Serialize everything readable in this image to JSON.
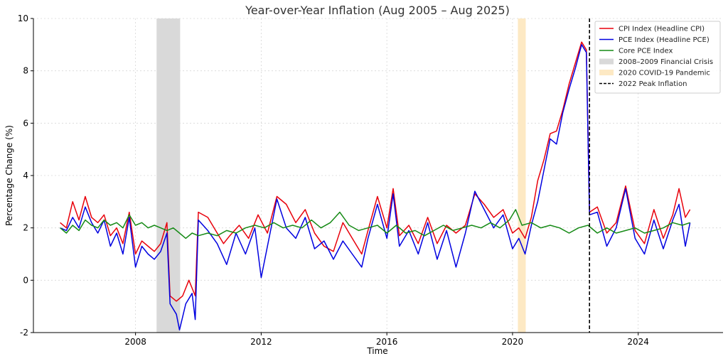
{
  "chart_data": {
    "type": "line",
    "title": "Year-over-Year Inflation (Aug 2005 – Aug 2025)",
    "xlabel": "Time",
    "ylabel": "Percentage Change (%)",
    "xlim": [
      2004.75,
      2026.7
    ],
    "ylim": [
      -2,
      10
    ],
    "xticks": [
      2008,
      2012,
      2016,
      2020,
      2024
    ],
    "yticks": [
      -2,
      0,
      2,
      4,
      6,
      8,
      10
    ],
    "grid": true,
    "legend_position": "top-right",
    "bands": [
      {
        "name": "2008–2009 Financial Crisis",
        "start": 2008.67,
        "end": 2009.42,
        "color": "#d9d9d9"
      },
      {
        "name": "2020 COVID-19 Pandemic",
        "start": 2020.17,
        "end": 2020.42,
        "color": "#fde9c4"
      }
    ],
    "vlines": [
      {
        "name": "2022 Peak Inflation",
        "x": 2022.45,
        "color": "#000000",
        "style": "dashed"
      }
    ],
    "series": [
      {
        "name": "CPI Index (Headline CPI)",
        "color": "#e8000b",
        "points": [
          [
            2005.6,
            2.2
          ],
          [
            2005.8,
            2.0
          ],
          [
            2006.0,
            3.0
          ],
          [
            2006.2,
            2.3
          ],
          [
            2006.4,
            3.2
          ],
          [
            2006.6,
            2.4
          ],
          [
            2006.8,
            2.2
          ],
          [
            2007.0,
            2.5
          ],
          [
            2007.2,
            1.7
          ],
          [
            2007.4,
            2.0
          ],
          [
            2007.6,
            1.4
          ],
          [
            2007.8,
            2.6
          ],
          [
            2008.0,
            1.0
          ],
          [
            2008.2,
            1.5
          ],
          [
            2008.4,
            1.3
          ],
          [
            2008.6,
            1.1
          ],
          [
            2008.8,
            1.4
          ],
          [
            2009.0,
            2.2
          ],
          [
            2009.1,
            -0.6
          ],
          [
            2009.3,
            -0.8
          ],
          [
            2009.5,
            -0.6
          ],
          [
            2009.7,
            0.0
          ],
          [
            2009.9,
            -0.6
          ],
          [
            2010.0,
            2.6
          ],
          [
            2010.3,
            2.4
          ],
          [
            2010.6,
            1.8
          ],
          [
            2010.8,
            1.4
          ],
          [
            2011.0,
            1.7
          ],
          [
            2011.3,
            2.1
          ],
          [
            2011.6,
            1.6
          ],
          [
            2011.9,
            2.5
          ],
          [
            2012.2,
            1.8
          ],
          [
            2012.5,
            3.2
          ],
          [
            2012.8,
            2.9
          ],
          [
            2013.1,
            2.2
          ],
          [
            2013.4,
            2.7
          ],
          [
            2013.7,
            1.8
          ],
          [
            2014.0,
            1.3
          ],
          [
            2014.3,
            1.1
          ],
          [
            2014.6,
            2.2
          ],
          [
            2014.9,
            1.6
          ],
          [
            2015.2,
            1.0
          ],
          [
            2015.4,
            1.9
          ],
          [
            2015.7,
            3.2
          ],
          [
            2016.0,
            2.0
          ],
          [
            2016.2,
            3.5
          ],
          [
            2016.4,
            1.7
          ],
          [
            2016.7,
            2.1
          ],
          [
            2017.0,
            1.4
          ],
          [
            2017.3,
            2.4
          ],
          [
            2017.6,
            1.4
          ],
          [
            2017.9,
            2.1
          ],
          [
            2018.2,
            1.8
          ],
          [
            2018.5,
            2.1
          ],
          [
            2018.8,
            3.3
          ],
          [
            2019.1,
            2.9
          ],
          [
            2019.4,
            2.4
          ],
          [
            2019.7,
            2.7
          ],
          [
            2020.0,
            1.8
          ],
          [
            2020.2,
            2.0
          ],
          [
            2020.4,
            1.6
          ],
          [
            2020.6,
            2.4
          ],
          [
            2020.8,
            3.8
          ],
          [
            2021.0,
            4.6
          ],
          [
            2021.2,
            5.6
          ],
          [
            2021.4,
            5.7
          ],
          [
            2021.6,
            6.5
          ],
          [
            2021.8,
            7.5
          ],
          [
            2022.0,
            8.3
          ],
          [
            2022.2,
            9.1
          ],
          [
            2022.35,
            8.8
          ],
          [
            2022.45,
            2.6
          ],
          [
            2022.7,
            2.8
          ],
          [
            2023.0,
            1.8
          ],
          [
            2023.3,
            2.2
          ],
          [
            2023.6,
            3.6
          ],
          [
            2023.9,
            1.9
          ],
          [
            2024.2,
            1.4
          ],
          [
            2024.5,
            2.7
          ],
          [
            2024.8,
            1.6
          ],
          [
            2025.1,
            2.5
          ],
          [
            2025.3,
            3.5
          ],
          [
            2025.5,
            2.4
          ],
          [
            2025.65,
            2.7
          ]
        ]
      },
      {
        "name": "PCE Index (Headline PCE)",
        "color": "#0000e0",
        "points": [
          [
            2005.6,
            2.0
          ],
          [
            2005.8,
            1.9
          ],
          [
            2006.0,
            2.4
          ],
          [
            2006.2,
            2.0
          ],
          [
            2006.4,
            2.8
          ],
          [
            2006.6,
            2.2
          ],
          [
            2006.8,
            1.8
          ],
          [
            2007.0,
            2.3
          ],
          [
            2007.2,
            1.3
          ],
          [
            2007.4,
            1.8
          ],
          [
            2007.6,
            1.0
          ],
          [
            2007.8,
            2.4
          ],
          [
            2008.0,
            0.5
          ],
          [
            2008.2,
            1.3
          ],
          [
            2008.4,
            1.0
          ],
          [
            2008.6,
            0.8
          ],
          [
            2008.8,
            1.1
          ],
          [
            2009.0,
            1.8
          ],
          [
            2009.1,
            -0.9
          ],
          [
            2009.3,
            -1.3
          ],
          [
            2009.4,
            -1.9
          ],
          [
            2009.6,
            -0.9
          ],
          [
            2009.8,
            -0.5
          ],
          [
            2009.9,
            -1.5
          ],
          [
            2010.0,
            2.3
          ],
          [
            2010.3,
            1.9
          ],
          [
            2010.6,
            1.4
          ],
          [
            2010.9,
            0.6
          ],
          [
            2011.2,
            1.8
          ],
          [
            2011.5,
            1.0
          ],
          [
            2011.8,
            2.0
          ],
          [
            2012.0,
            0.1
          ],
          [
            2012.3,
            1.9
          ],
          [
            2012.5,
            3.1
          ],
          [
            2012.8,
            2.0
          ],
          [
            2013.1,
            1.6
          ],
          [
            2013.4,
            2.4
          ],
          [
            2013.7,
            1.2
          ],
          [
            2014.0,
            1.5
          ],
          [
            2014.3,
            0.8
          ],
          [
            2014.6,
            1.5
          ],
          [
            2014.9,
            1.0
          ],
          [
            2015.2,
            0.5
          ],
          [
            2015.4,
            1.6
          ],
          [
            2015.7,
            2.9
          ],
          [
            2016.0,
            1.6
          ],
          [
            2016.2,
            3.3
          ],
          [
            2016.4,
            1.3
          ],
          [
            2016.7,
            1.9
          ],
          [
            2017.0,
            1.0
          ],
          [
            2017.3,
            2.2
          ],
          [
            2017.6,
            0.8
          ],
          [
            2017.9,
            1.9
          ],
          [
            2018.2,
            0.5
          ],
          [
            2018.5,
            1.8
          ],
          [
            2018.8,
            3.4
          ],
          [
            2019.1,
            2.7
          ],
          [
            2019.4,
            2.0
          ],
          [
            2019.7,
            2.5
          ],
          [
            2020.0,
            1.2
          ],
          [
            2020.2,
            1.6
          ],
          [
            2020.4,
            1.0
          ],
          [
            2020.6,
            2.1
          ],
          [
            2020.8,
            3.0
          ],
          [
            2021.0,
            4.2
          ],
          [
            2021.2,
            5.4
          ],
          [
            2021.4,
            5.2
          ],
          [
            2021.6,
            6.4
          ],
          [
            2021.8,
            7.3
          ],
          [
            2022.0,
            8.1
          ],
          [
            2022.2,
            9.0
          ],
          [
            2022.35,
            8.7
          ],
          [
            2022.45,
            2.5
          ],
          [
            2022.7,
            2.6
          ],
          [
            2023.0,
            1.3
          ],
          [
            2023.3,
            2.0
          ],
          [
            2023.6,
            3.5
          ],
          [
            2023.9,
            1.6
          ],
          [
            2024.2,
            1.0
          ],
          [
            2024.5,
            2.3
          ],
          [
            2024.8,
            1.2
          ],
          [
            2025.1,
            2.3
          ],
          [
            2025.3,
            2.9
          ],
          [
            2025.5,
            1.3
          ],
          [
            2025.65,
            2.2
          ]
        ]
      },
      {
        "name": "Core PCE Index",
        "color": "#158a15",
        "points": [
          [
            2005.6,
            2.0
          ],
          [
            2005.8,
            1.8
          ],
          [
            2006.0,
            2.1
          ],
          [
            2006.2,
            1.9
          ],
          [
            2006.4,
            2.3
          ],
          [
            2006.6,
            2.1
          ],
          [
            2006.8,
            2.0
          ],
          [
            2007.0,
            2.3
          ],
          [
            2007.2,
            2.1
          ],
          [
            2007.4,
            2.2
          ],
          [
            2007.6,
            2.0
          ],
          [
            2007.8,
            2.5
          ],
          [
            2008.0,
            2.1
          ],
          [
            2008.2,
            2.2
          ],
          [
            2008.4,
            2.0
          ],
          [
            2008.6,
            2.1
          ],
          [
            2008.8,
            2.0
          ],
          [
            2009.0,
            1.9
          ],
          [
            2009.2,
            2.0
          ],
          [
            2009.4,
            1.8
          ],
          [
            2009.6,
            1.6
          ],
          [
            2009.8,
            1.8
          ],
          [
            2010.0,
            1.7
          ],
          [
            2010.3,
            1.8
          ],
          [
            2010.6,
            1.7
          ],
          [
            2010.9,
            1.9
          ],
          [
            2011.2,
            1.8
          ],
          [
            2011.5,
            2.0
          ],
          [
            2011.8,
            2.1
          ],
          [
            2012.1,
            2.0
          ],
          [
            2012.4,
            2.2
          ],
          [
            2012.7,
            2.0
          ],
          [
            2013.0,
            2.1
          ],
          [
            2013.3,
            2.0
          ],
          [
            2013.6,
            2.3
          ],
          [
            2013.9,
            2.0
          ],
          [
            2014.2,
            2.2
          ],
          [
            2014.5,
            2.6
          ],
          [
            2014.8,
            2.1
          ],
          [
            2015.1,
            1.9
          ],
          [
            2015.4,
            2.0
          ],
          [
            2015.7,
            2.1
          ],
          [
            2016.0,
            1.8
          ],
          [
            2016.3,
            2.1
          ],
          [
            2016.6,
            1.8
          ],
          [
            2016.9,
            1.9
          ],
          [
            2017.2,
            1.7
          ],
          [
            2017.5,
            1.9
          ],
          [
            2017.8,
            2.1
          ],
          [
            2018.1,
            1.9
          ],
          [
            2018.4,
            2.0
          ],
          [
            2018.7,
            2.1
          ],
          [
            2019.0,
            2.0
          ],
          [
            2019.3,
            2.2
          ],
          [
            2019.6,
            2.0
          ],
          [
            2019.9,
            2.3
          ],
          [
            2020.1,
            2.7
          ],
          [
            2020.3,
            2.1
          ],
          [
            2020.6,
            2.2
          ],
          [
            2020.9,
            2.0
          ],
          [
            2021.2,
            2.1
          ],
          [
            2021.5,
            2.0
          ],
          [
            2021.8,
            1.8
          ],
          [
            2022.1,
            2.0
          ],
          [
            2022.4,
            2.1
          ],
          [
            2022.7,
            1.8
          ],
          [
            2023.0,
            2.0
          ],
          [
            2023.3,
            1.8
          ],
          [
            2023.6,
            1.9
          ],
          [
            2023.9,
            2.0
          ],
          [
            2024.2,
            1.8
          ],
          [
            2024.5,
            1.9
          ],
          [
            2024.8,
            2.0
          ],
          [
            2025.1,
            2.2
          ],
          [
            2025.4,
            2.1
          ],
          [
            2025.65,
            2.2
          ]
        ]
      }
    ]
  }
}
